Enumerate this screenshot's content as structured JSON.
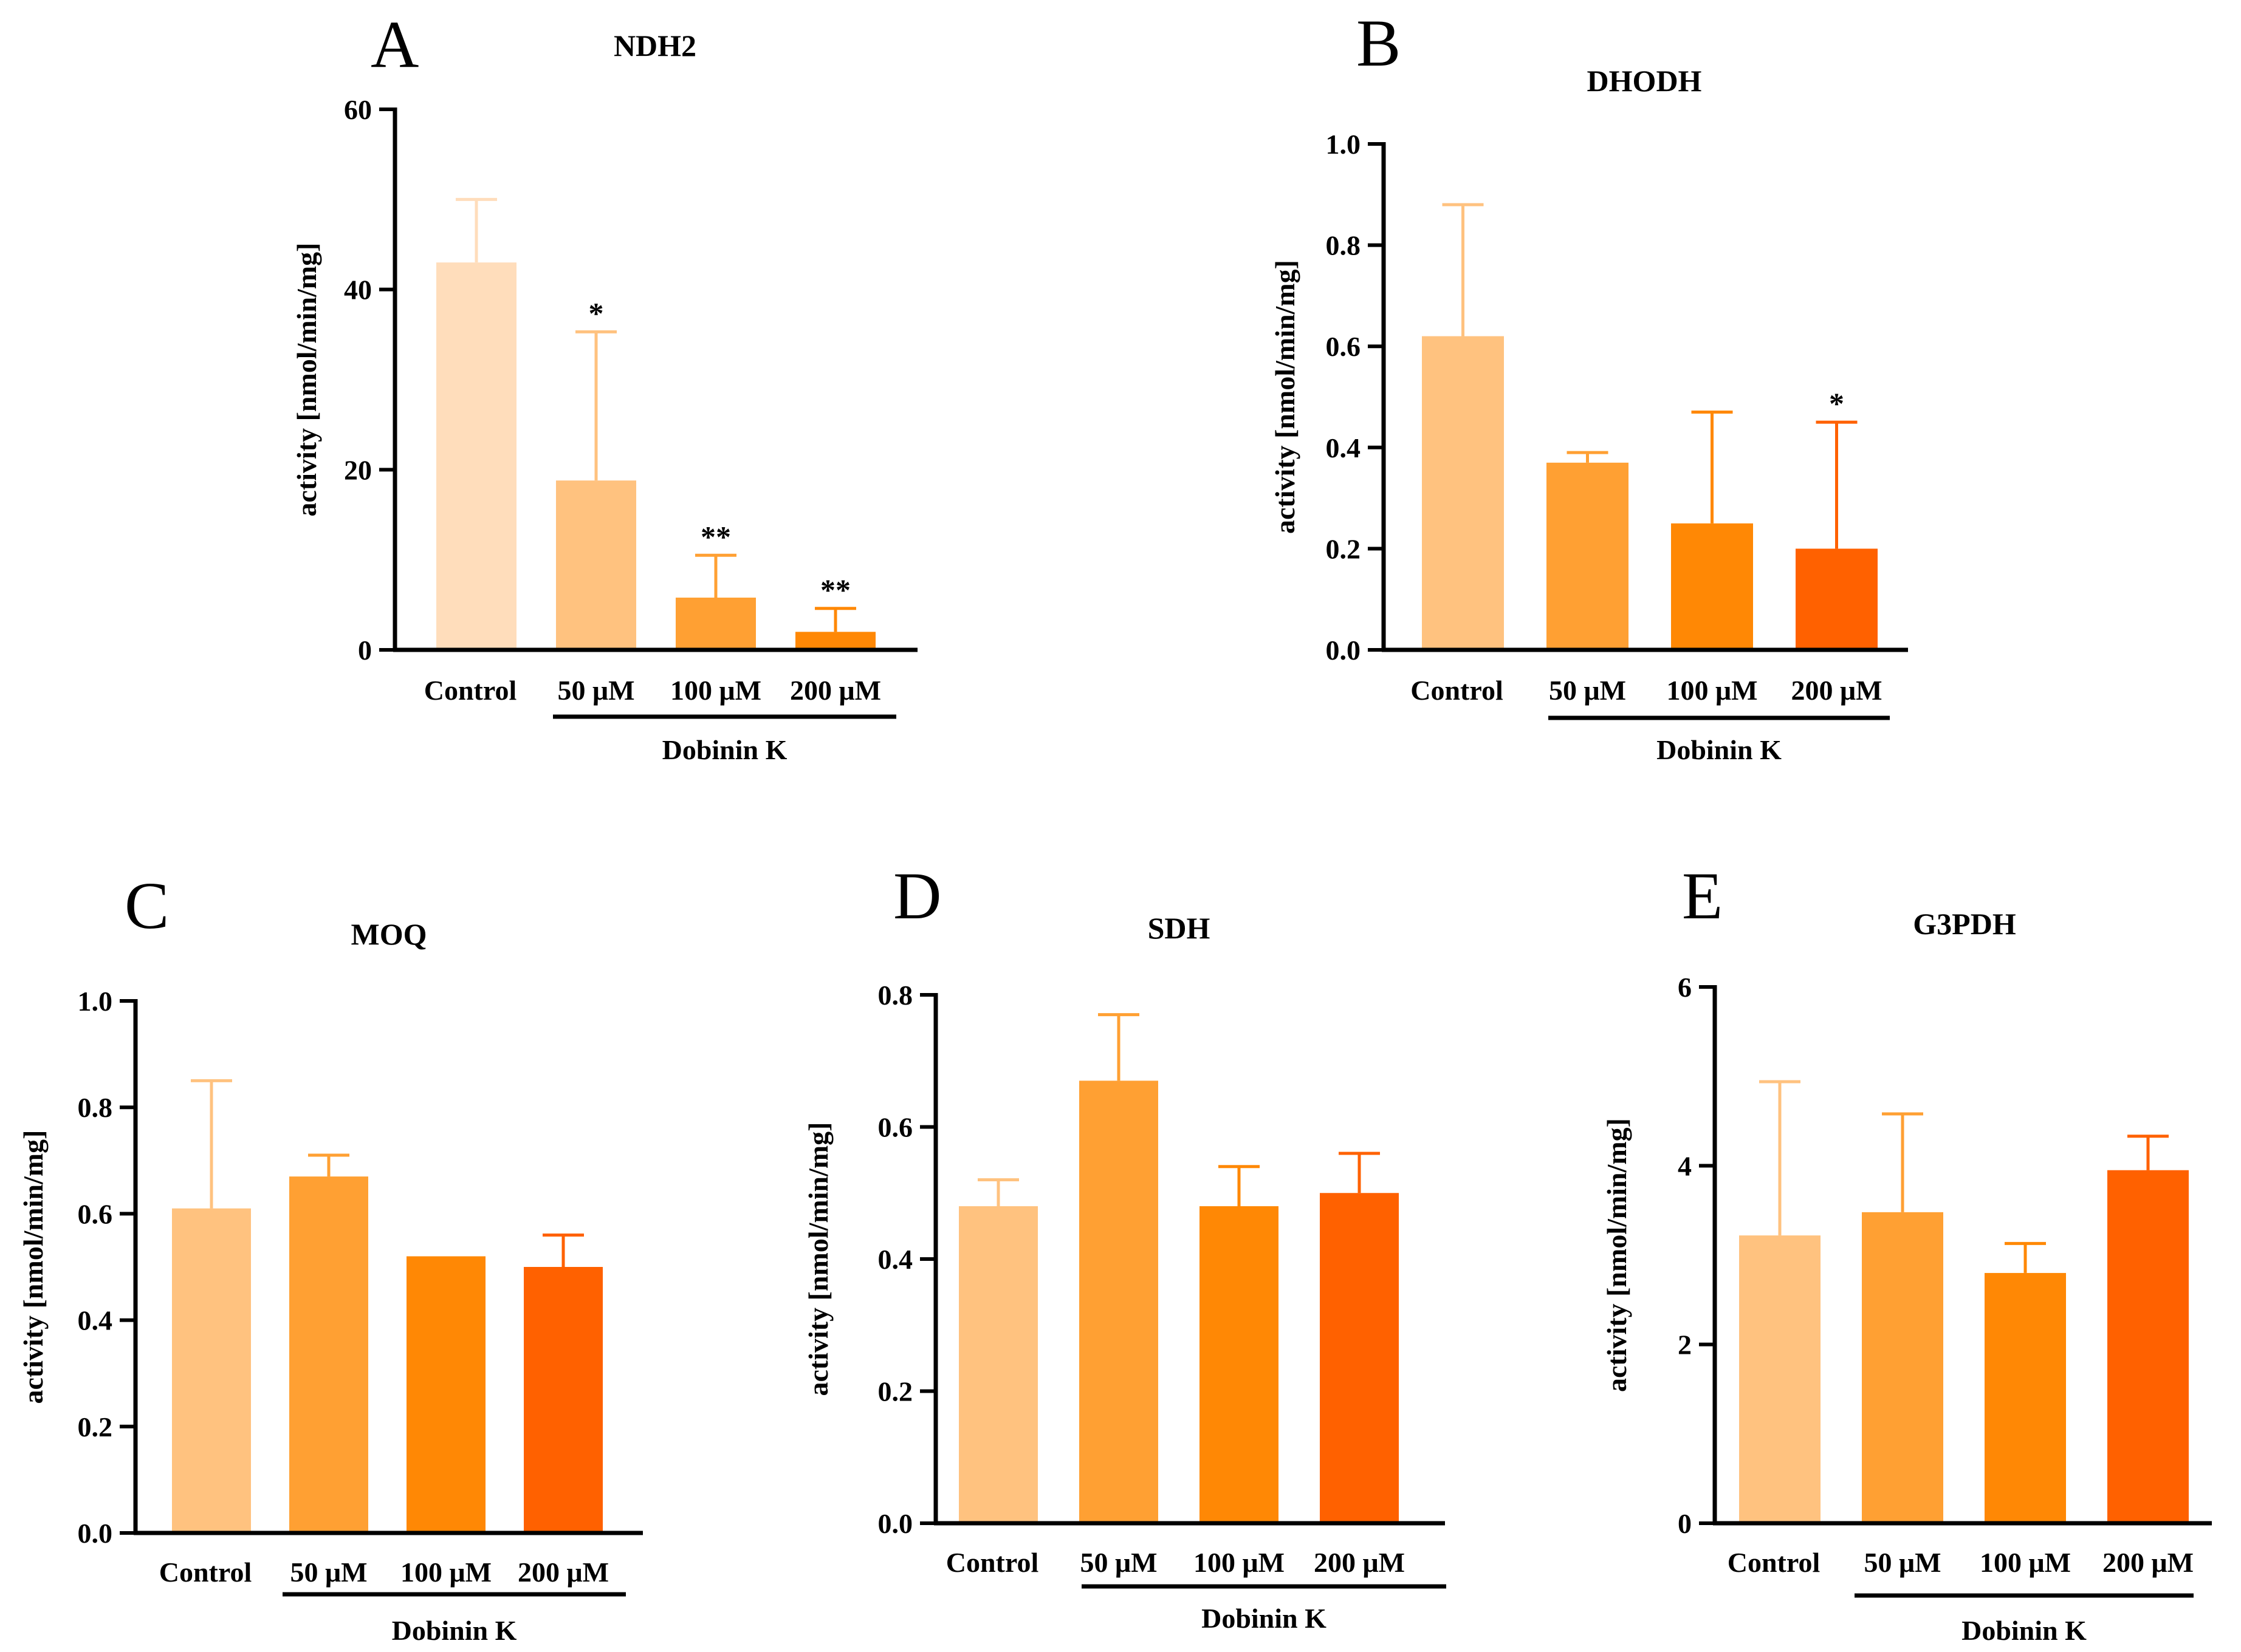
{
  "colors": {
    "control_dark": "#FFDDBB",
    "control": "#FFC27F",
    "c50": "#FFA033",
    "c100": "#FF8805",
    "c200": "#FF6100",
    "axis": "#000000"
  },
  "common": {
    "ylabel": "activity [nmol/min/mg]",
    "group_label": "Dobinin K",
    "categories": [
      "Control",
      "50 μM",
      "100 μM",
      "200 μM"
    ]
  },
  "chart_data": [
    {
      "type": "bar",
      "letter": "A",
      "title": "NDH2",
      "ylabel": "activity [nmol/min/mg]",
      "categories": [
        "Control",
        "50 μM",
        "100 μM",
        "200 μM"
      ],
      "values": [
        43,
        18.8,
        5.8,
        2.0
      ],
      "errors": [
        7,
        16.5,
        4.7,
        2.6
      ],
      "significance": [
        "",
        "*",
        "**",
        "**"
      ],
      "ylim": [
        0,
        60
      ],
      "yticks": [
        0,
        20,
        40,
        60
      ],
      "ytick_labels": [
        "0",
        "20",
        "40",
        "60"
      ],
      "bar_colors": [
        "#FFDDBB",
        "#FFC27F",
        "#FFA033",
        "#FF8805"
      ],
      "group_label": "Dobinin K"
    },
    {
      "type": "bar",
      "letter": "B",
      "title": "DHODH",
      "ylabel": "activity [nmol/min/mg]",
      "categories": [
        "Control",
        "50 μM",
        "100 μM",
        "200 μM"
      ],
      "values": [
        0.62,
        0.37,
        0.25,
        0.2
      ],
      "errors": [
        0.26,
        0.02,
        0.22,
        0.25
      ],
      "significance": [
        "",
        "",
        "",
        "*"
      ],
      "ylim": [
        0,
        1.0
      ],
      "yticks": [
        0,
        0.2,
        0.4,
        0.6,
        0.8,
        1.0
      ],
      "ytick_labels": [
        "0.0",
        "0.2",
        "0.4",
        "0.6",
        "0.8",
        "1.0"
      ],
      "bar_colors": [
        "#FFC27F",
        "#FFA033",
        "#FF8805",
        "#FF6100"
      ],
      "group_label": "Dobinin K"
    },
    {
      "type": "bar",
      "letter": "C",
      "title": "MOQ",
      "ylabel": "activity [nmol/min/mg]",
      "categories": [
        "Control",
        "50 μM",
        "100 μM",
        "200 μM"
      ],
      "values": [
        0.61,
        0.67,
        0.52,
        0.5
      ],
      "errors": [
        0.24,
        0.04,
        0.0,
        0.06
      ],
      "significance": [
        "",
        "",
        "",
        ""
      ],
      "ylim": [
        0,
        1.0
      ],
      "yticks": [
        0,
        0.2,
        0.4,
        0.6,
        0.8,
        1.0
      ],
      "ytick_labels": [
        "0.0",
        "0.2",
        "0.4",
        "0.6",
        "0.8",
        "1.0"
      ],
      "bar_colors": [
        "#FFC27F",
        "#FFA033",
        "#FF8805",
        "#FF6100"
      ],
      "group_label": "Dobinin K"
    },
    {
      "type": "bar",
      "letter": "D",
      "title": "SDH",
      "ylabel": "activity [nmol/min/mg]",
      "categories": [
        "Control",
        "50 μM",
        "100 μM",
        "200 μM"
      ],
      "values": [
        0.48,
        0.67,
        0.48,
        0.5
      ],
      "errors": [
        0.04,
        0.1,
        0.06,
        0.06
      ],
      "significance": [
        "",
        "",
        "",
        ""
      ],
      "ylim": [
        0,
        0.8
      ],
      "yticks": [
        0,
        0.2,
        0.4,
        0.6,
        0.8
      ],
      "ytick_labels": [
        "0.0",
        "0.2",
        "0.4",
        "0.6",
        "0.8"
      ],
      "bar_colors": [
        "#FFC27F",
        "#FFA033",
        "#FF8805",
        "#FF6100"
      ],
      "group_label": "Dobinin K"
    },
    {
      "type": "bar",
      "letter": "E",
      "title": "G3PDH",
      "ylabel": "activity [nmol/min/mg]",
      "categories": [
        "Control",
        "50 μM",
        "100 μM",
        "200 μM"
      ],
      "values": [
        3.22,
        3.48,
        2.8,
        3.95
      ],
      "errors": [
        1.72,
        1.1,
        0.33,
        0.38
      ],
      "significance": [
        "",
        "",
        "",
        ""
      ],
      "ylim": [
        0,
        6
      ],
      "yticks": [
        0,
        2,
        4,
        6
      ],
      "ytick_labels": [
        "0",
        "2",
        "4",
        "6"
      ],
      "bar_colors": [
        "#FFC27F",
        "#FFA033",
        "#FF8805",
        "#FF6100"
      ],
      "group_label": "Dobinin K"
    }
  ]
}
